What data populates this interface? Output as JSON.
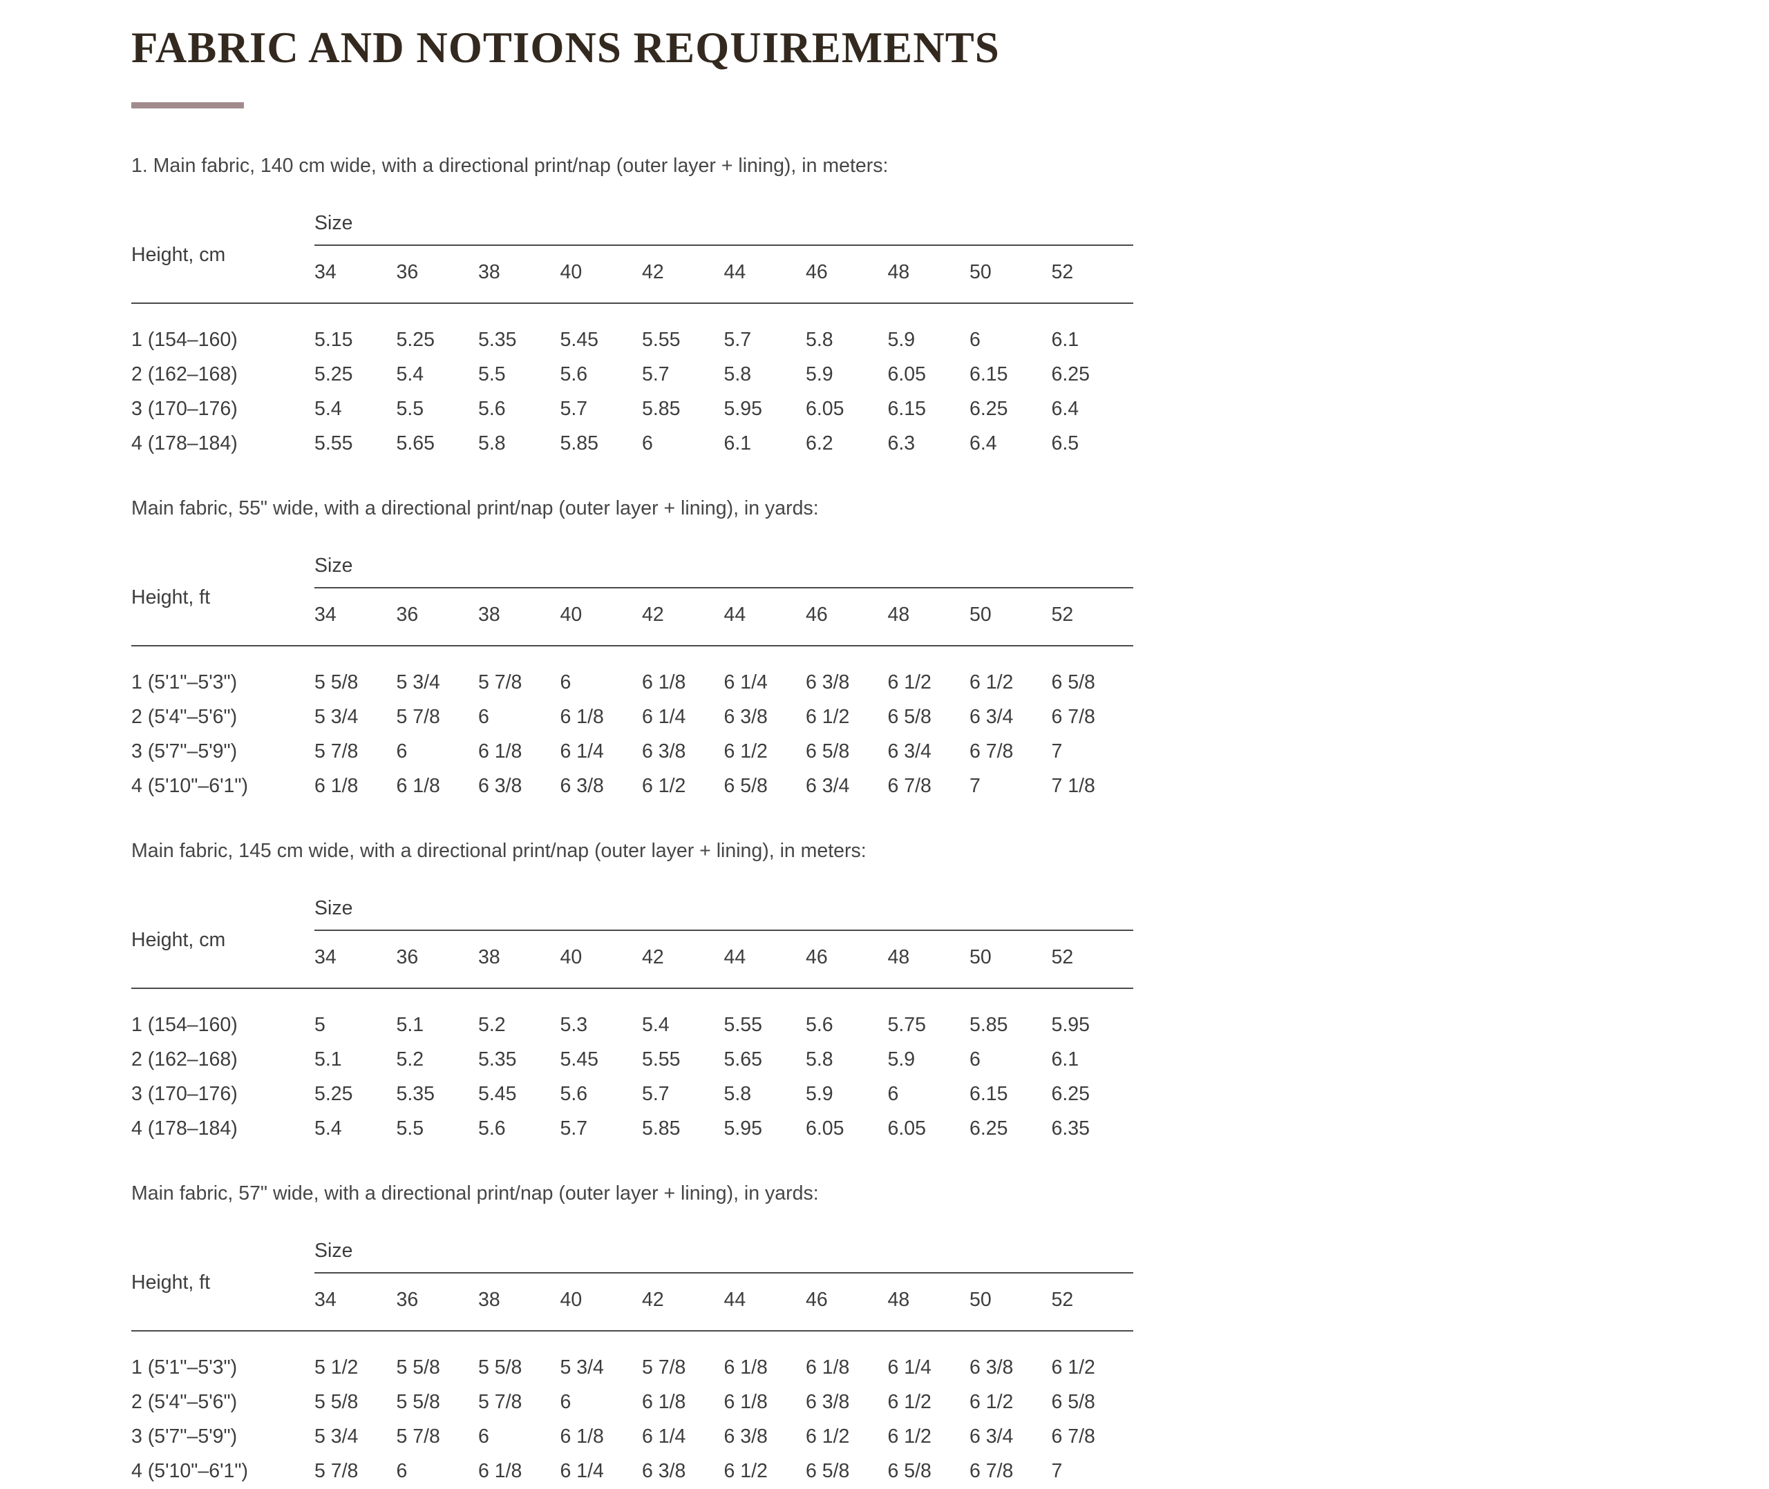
{
  "page": {
    "title": "FABRIC AND NOTIONS REQUIREMENTS",
    "accent_color": "#a28b8d",
    "title_color": "#33291f",
    "text_color": "#3d3d3d"
  },
  "sections": [
    {
      "label": "1. Main fabric, 140 cm wide, with a directional print/nap (outer layer + lining), in meters:",
      "table": {
        "row_header": "Height, cm",
        "col_group_header": "Size",
        "columns": [
          "34",
          "36",
          "38",
          "40",
          "42",
          "44",
          "46",
          "48",
          "50",
          "52"
        ],
        "rows": [
          {
            "height": "1 (154–160)",
            "values": [
              "5.15",
              "5.25",
              "5.35",
              "5.45",
              "5.55",
              "5.7",
              "5.8",
              "5.9",
              "6",
              "6.1"
            ]
          },
          {
            "height": "2 (162–168)",
            "values": [
              "5.25",
              "5.4",
              "5.5",
              "5.6",
              "5.7",
              "5.8",
              "5.9",
              "6.05",
              "6.15",
              "6.25"
            ]
          },
          {
            "height": "3 (170–176)",
            "values": [
              "5.4",
              "5.5",
              "5.6",
              "5.7",
              "5.85",
              "5.95",
              "6.05",
              "6.15",
              "6.25",
              "6.4"
            ]
          },
          {
            "height": "4 (178–184)",
            "values": [
              "5.55",
              "5.65",
              "5.8",
              "5.85",
              "6",
              "6.1",
              "6.2",
              "6.3",
              "6.4",
              "6.5"
            ]
          }
        ]
      }
    },
    {
      "label": "Main fabric, 55\" wide, with a directional print/nap (outer layer + lining), in yards:",
      "table": {
        "row_header": "Height, ft",
        "col_group_header": "Size",
        "columns": [
          "34",
          "36",
          "38",
          "40",
          "42",
          "44",
          "46",
          "48",
          "50",
          "52"
        ],
        "rows": [
          {
            "height": "1 (5'1\"–5'3\")",
            "values": [
              "5 5/8",
              "5 3/4",
              "5 7/8",
              "6",
              "6 1/8",
              "6 1/4",
              "6 3/8",
              "6 1/2",
              "6 1/2",
              "6 5/8"
            ]
          },
          {
            "height": "2 (5'4\"–5'6\")",
            "values": [
              "5 3/4",
              "5 7/8",
              "6",
              "6 1/8",
              "6 1/4",
              "6 3/8",
              "6 1/2",
              "6 5/8",
              "6 3/4",
              "6 7/8"
            ]
          },
          {
            "height": "3 (5'7\"–5'9\")",
            "values": [
              "5 7/8",
              "6",
              "6 1/8",
              "6 1/4",
              "6 3/8",
              "6 1/2",
              "6 5/8",
              "6 3/4",
              "6 7/8",
              "7"
            ]
          },
          {
            "height": "4 (5'10\"–6'1\")",
            "values": [
              "6 1/8",
              "6 1/8",
              "6 3/8",
              "6 3/8",
              "6 1/2",
              "6 5/8",
              "6 3/4",
              "6 7/8",
              "7",
              "7 1/8"
            ]
          }
        ]
      }
    },
    {
      "label": "Main fabric, 145 cm wide, with a directional print/nap (outer layer + lining), in meters:",
      "table": {
        "row_header": "Height, cm",
        "col_group_header": "Size",
        "columns": [
          "34",
          "36",
          "38",
          "40",
          "42",
          "44",
          "46",
          "48",
          "50",
          "52"
        ],
        "rows": [
          {
            "height": "1 (154–160)",
            "values": [
              "5",
              "5.1",
              "5.2",
              "5.3",
              "5.4",
              "5.55",
              "5.6",
              "5.75",
              "5.85",
              "5.95"
            ]
          },
          {
            "height": "2 (162–168)",
            "values": [
              "5.1",
              "5.2",
              "5.35",
              "5.45",
              "5.55",
              "5.65",
              "5.8",
              "5.9",
              "6",
              "6.1"
            ]
          },
          {
            "height": "3 (170–176)",
            "values": [
              "5.25",
              "5.35",
              "5.45",
              "5.6",
              "5.7",
              "5.8",
              "5.9",
              "6",
              "6.15",
              "6.25"
            ]
          },
          {
            "height": "4 (178–184)",
            "values": [
              "5.4",
              "5.5",
              "5.6",
              "5.7",
              "5.85",
              "5.95",
              "6.05",
              "6.05",
              "6.25",
              "6.35"
            ]
          }
        ]
      }
    },
    {
      "label": "Main fabric, 57\" wide, with a directional print/nap (outer layer + lining), in yards:",
      "table": {
        "row_header": "Height, ft",
        "col_group_header": "Size",
        "columns": [
          "34",
          "36",
          "38",
          "40",
          "42",
          "44",
          "46",
          "48",
          "50",
          "52"
        ],
        "rows": [
          {
            "height": "1 (5'1\"–5'3\")",
            "values": [
              "5 1/2",
              "5 5/8",
              "5 5/8",
              "5 3/4",
              "5 7/8",
              "6 1/8",
              "6 1/8",
              "6 1/4",
              "6 3/8",
              "6 1/2"
            ]
          },
          {
            "height": "2 (5'4\"–5'6\")",
            "values": [
              "5 5/8",
              "5 5/8",
              "5 7/8",
              "6",
              "6 1/8",
              "6 1/8",
              "6 3/8",
              "6 1/2",
              "6 1/2",
              "6 5/8"
            ]
          },
          {
            "height": "3 (5'7\"–5'9\")",
            "values": [
              "5 3/4",
              "5 7/8",
              "6",
              "6 1/8",
              "6 1/4",
              "6 3/8",
              "6 1/2",
              "6 1/2",
              "6 3/4",
              "6 7/8"
            ]
          },
          {
            "height": "4 (5'10\"–6'1\")",
            "values": [
              "5 7/8",
              "6",
              "6 1/8",
              "6 1/4",
              "6 3/8",
              "6 1/2",
              "6 5/8",
              "6 5/8",
              "6 7/8",
              "7"
            ]
          }
        ]
      }
    }
  ]
}
